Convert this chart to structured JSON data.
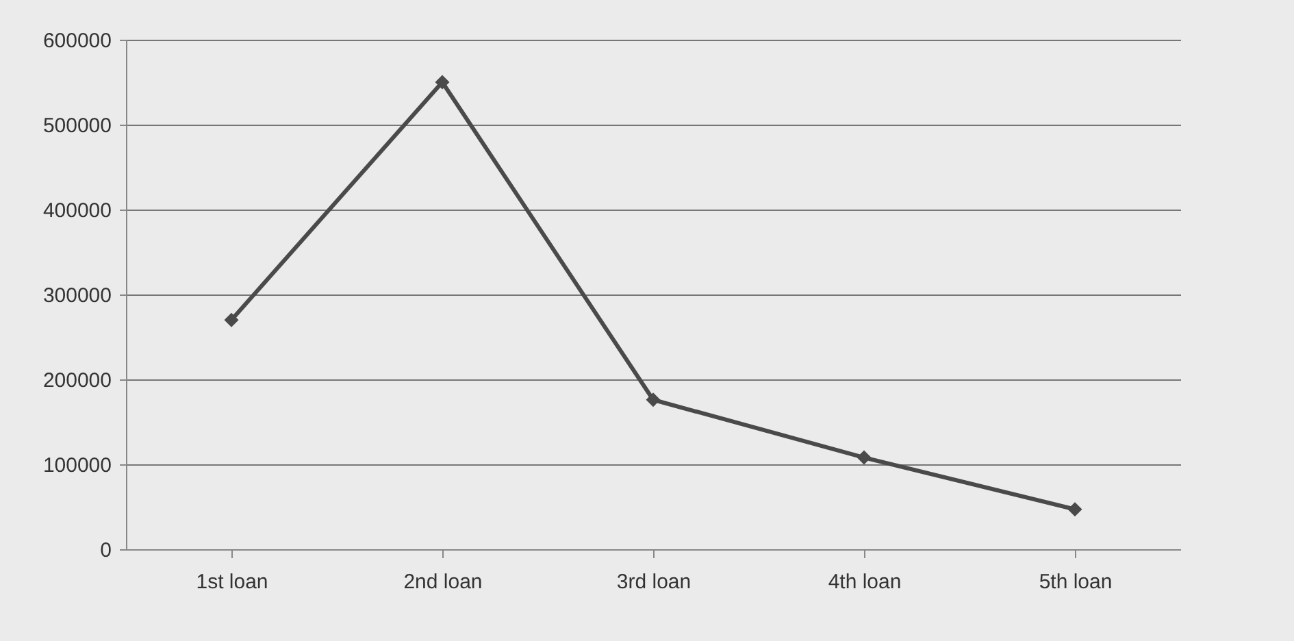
{
  "chart_data": {
    "type": "line",
    "categories": [
      "1st loan",
      "2nd loan",
      "3rd loan",
      "4th loan",
      "5th loan"
    ],
    "series": [
      {
        "color": "#4a4a4a",
        "values": [
          270000,
          550000,
          176000,
          108000,
          47000
        ]
      }
    ],
    "ylim": [
      0,
      600000
    ],
    "yticks": [
      0,
      100000,
      200000,
      300000,
      400000,
      500000,
      600000
    ],
    "grid": "y",
    "marker": "diamond",
    "line_style": "solid",
    "legend": false
  }
}
